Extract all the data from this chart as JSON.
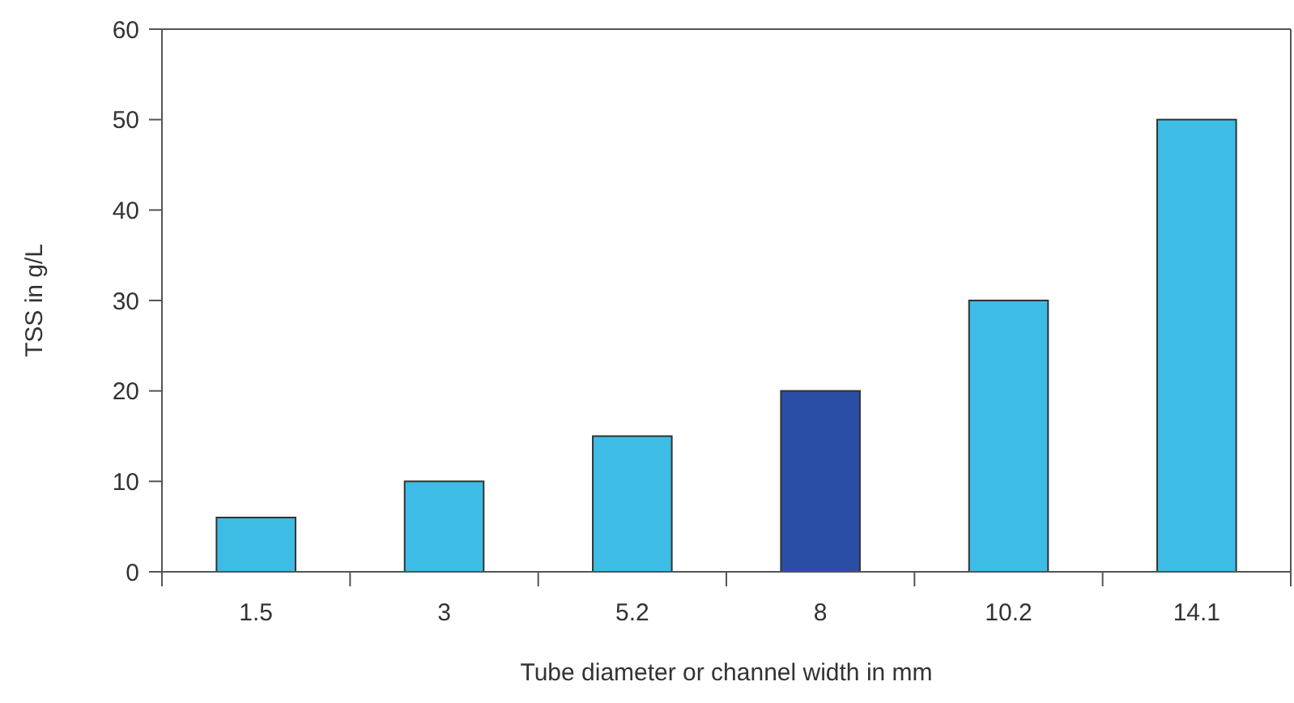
{
  "chart_data": {
    "type": "bar",
    "xlabel": "Tube diameter or channel width in mm",
    "ylabel": "TSS in g/L",
    "categories": [
      "1.5",
      "3",
      "5.2",
      "8",
      "10.2",
      "14.1"
    ],
    "values": [
      6,
      10,
      15,
      20,
      30,
      50
    ],
    "colors": [
      "#3dbde6",
      "#3dbde6",
      "#3dbde6",
      "#2a4ea6",
      "#3dbde6",
      "#3dbde6"
    ],
    "ylim": [
      0,
      60
    ],
    "yticks": [
      0,
      10,
      20,
      30,
      40,
      50,
      60
    ],
    "grid": false
  }
}
